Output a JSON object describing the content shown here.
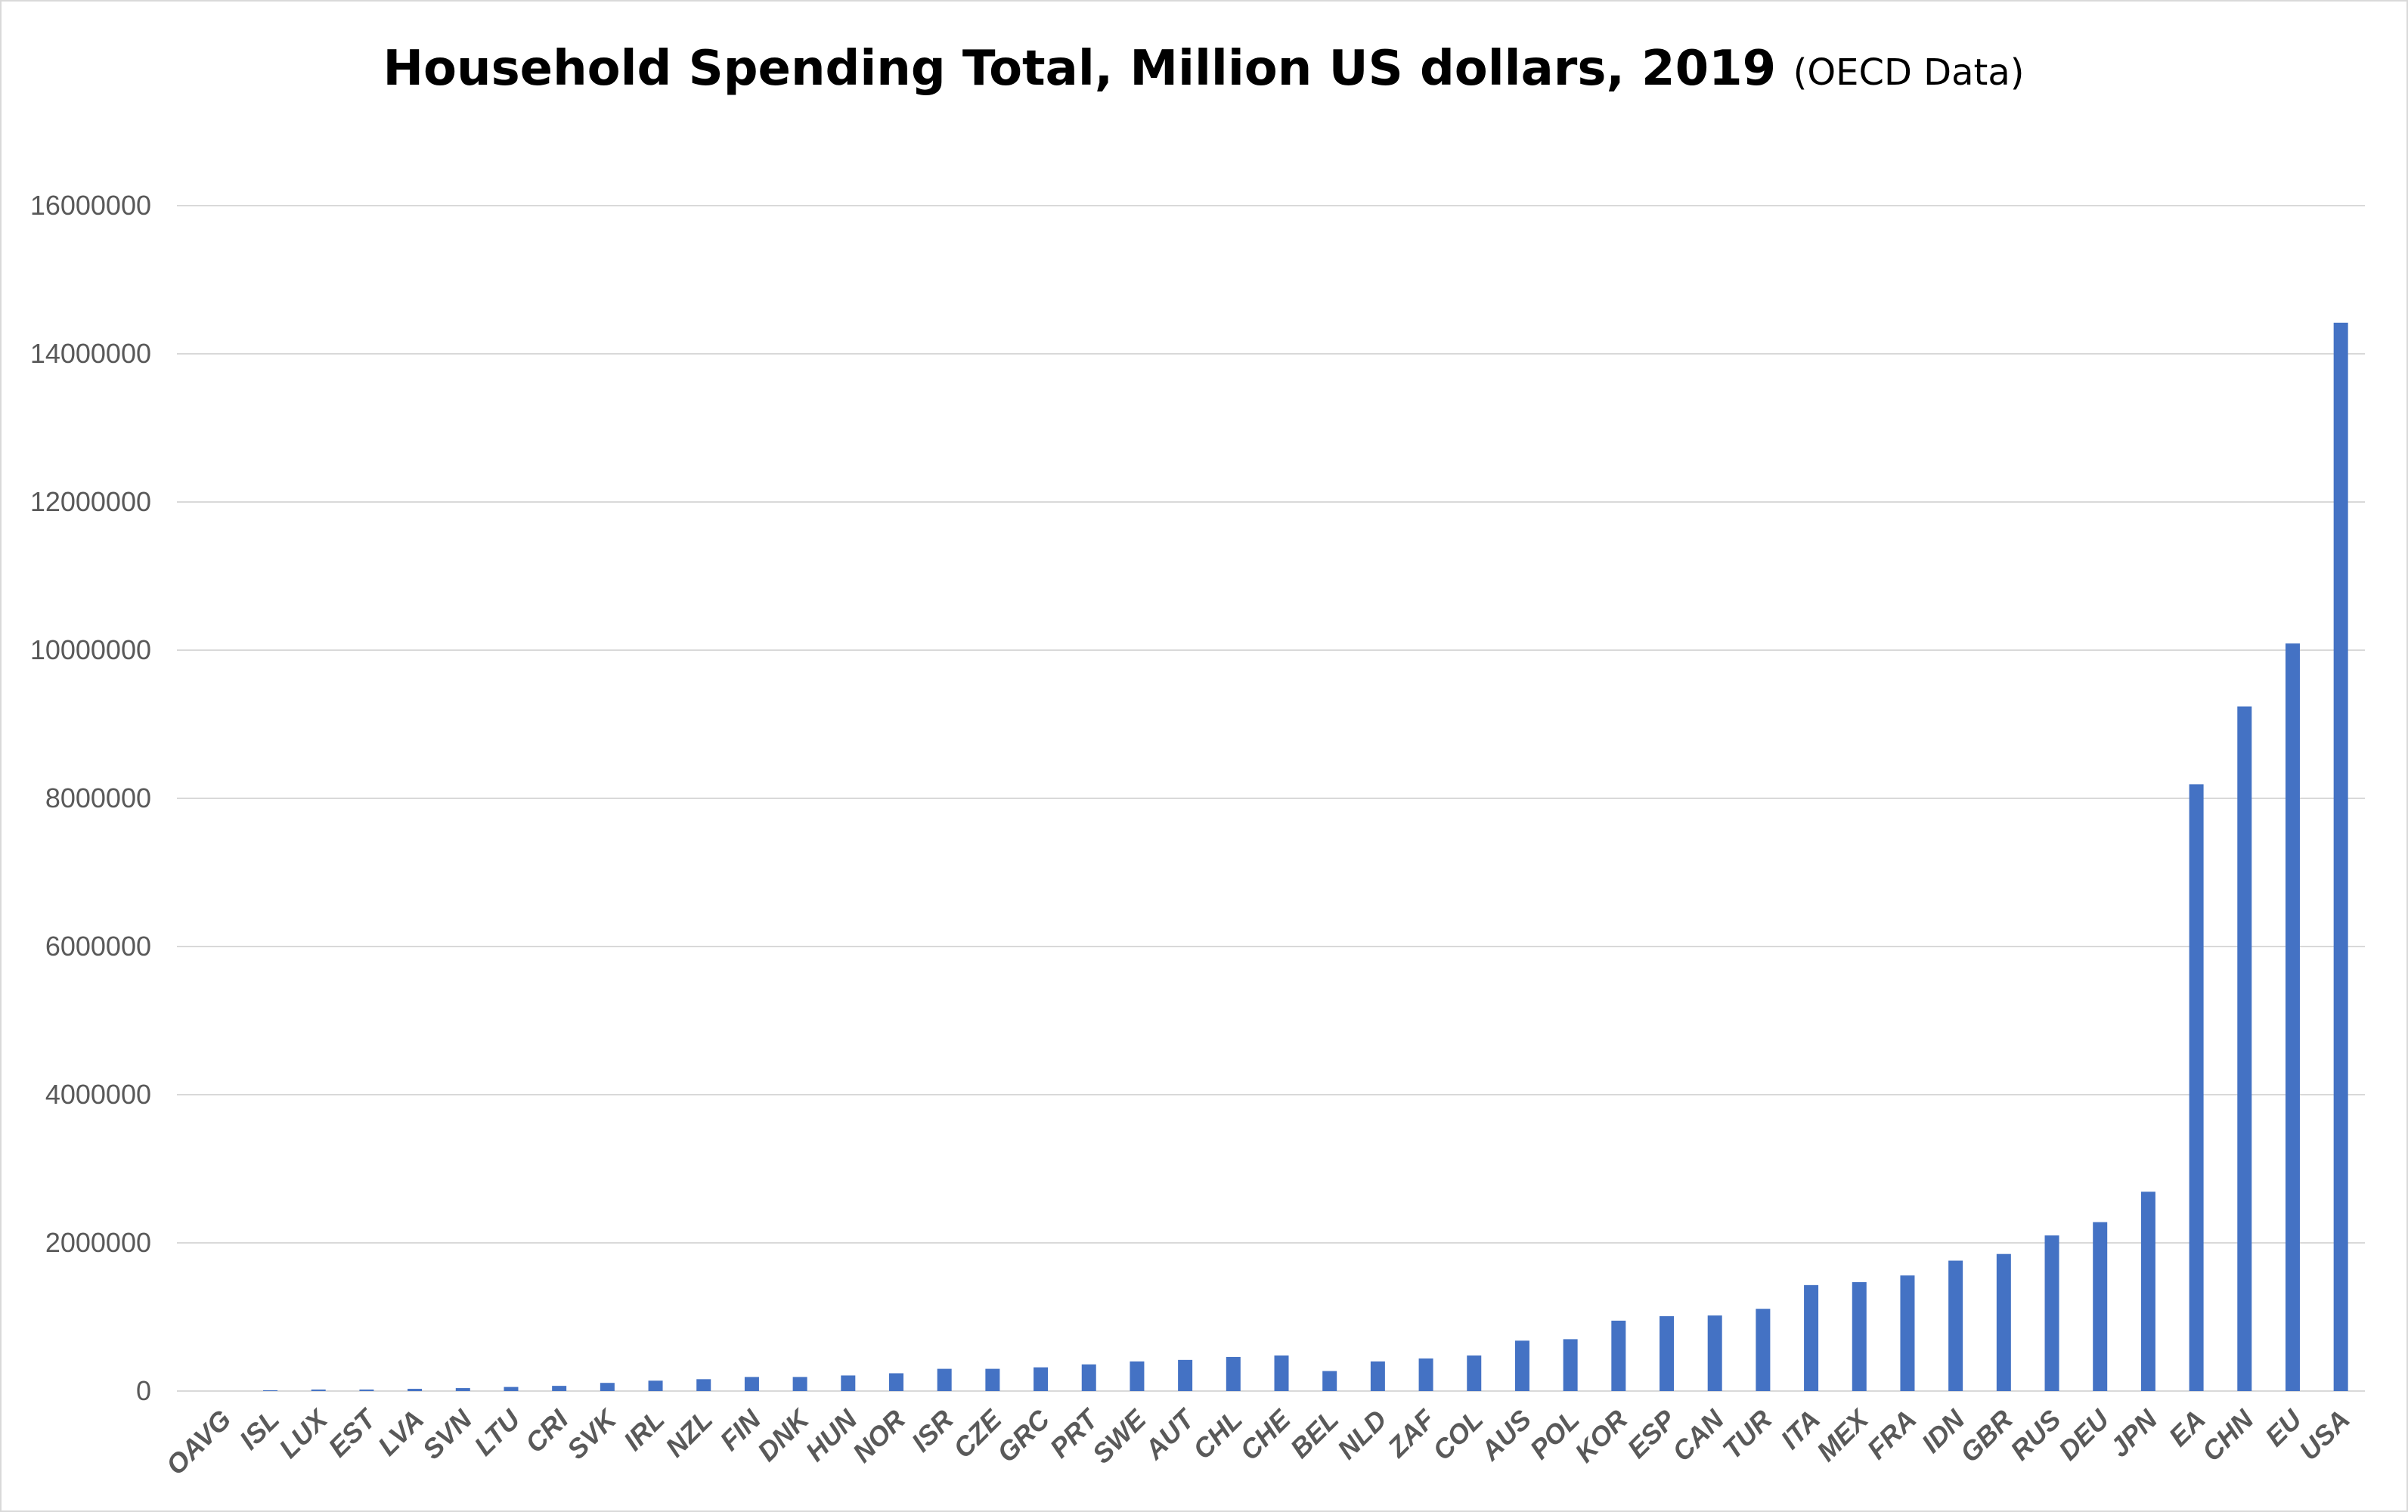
{
  "chart_data": {
    "type": "bar",
    "title": "Household Spending Total, Million US dollars, 2019",
    "subtitle": "(OECD Data)",
    "xlabel": "",
    "ylabel": "",
    "ylim": [
      0,
      16000000
    ],
    "yticks": [
      "0",
      "2000000",
      "4000000",
      "6000000",
      "8000000",
      "10000000",
      "12000000",
      "14000000",
      "16000000"
    ],
    "grid": true,
    "legend": "none",
    "bar_color": "#4472c4",
    "categories": [
      "OAVG",
      "ISL",
      "LUX",
      "EST",
      "LVA",
      "SVN",
      "LTU",
      "CRI",
      "SVK",
      "IRL",
      "NZL",
      "FIN",
      "DNK",
      "HUN",
      "NOR",
      "ISR",
      "CZE",
      "GRC",
      "PRT",
      "SWE",
      "AUT",
      "CHL",
      "CHE",
      "BEL",
      "NLD",
      "ZAF",
      "COL",
      "AUS",
      "POL",
      "KOR",
      "ESP",
      "CAN",
      "TUR",
      "ITA",
      "MEX",
      "FRA",
      "IDN",
      "GBR",
      "RUS",
      "DEU",
      "JPN",
      "EA",
      "CHN",
      "EU",
      "USA"
    ],
    "values": [
      0,
      10000,
      20000,
      20000,
      30000,
      40000,
      55000,
      70000,
      110000,
      140000,
      160000,
      190000,
      190000,
      210000,
      240000,
      300000,
      300000,
      320000,
      360000,
      400000,
      420000,
      460000,
      480000,
      270000,
      400000,
      440000,
      480000,
      680000,
      700000,
      950000,
      1010000,
      1020000,
      1110000,
      1430000,
      1470000,
      1560000,
      1760000,
      1850000,
      2100000,
      2280000,
      2690000,
      8190000,
      9240000,
      10090000,
      14420000
    ]
  }
}
